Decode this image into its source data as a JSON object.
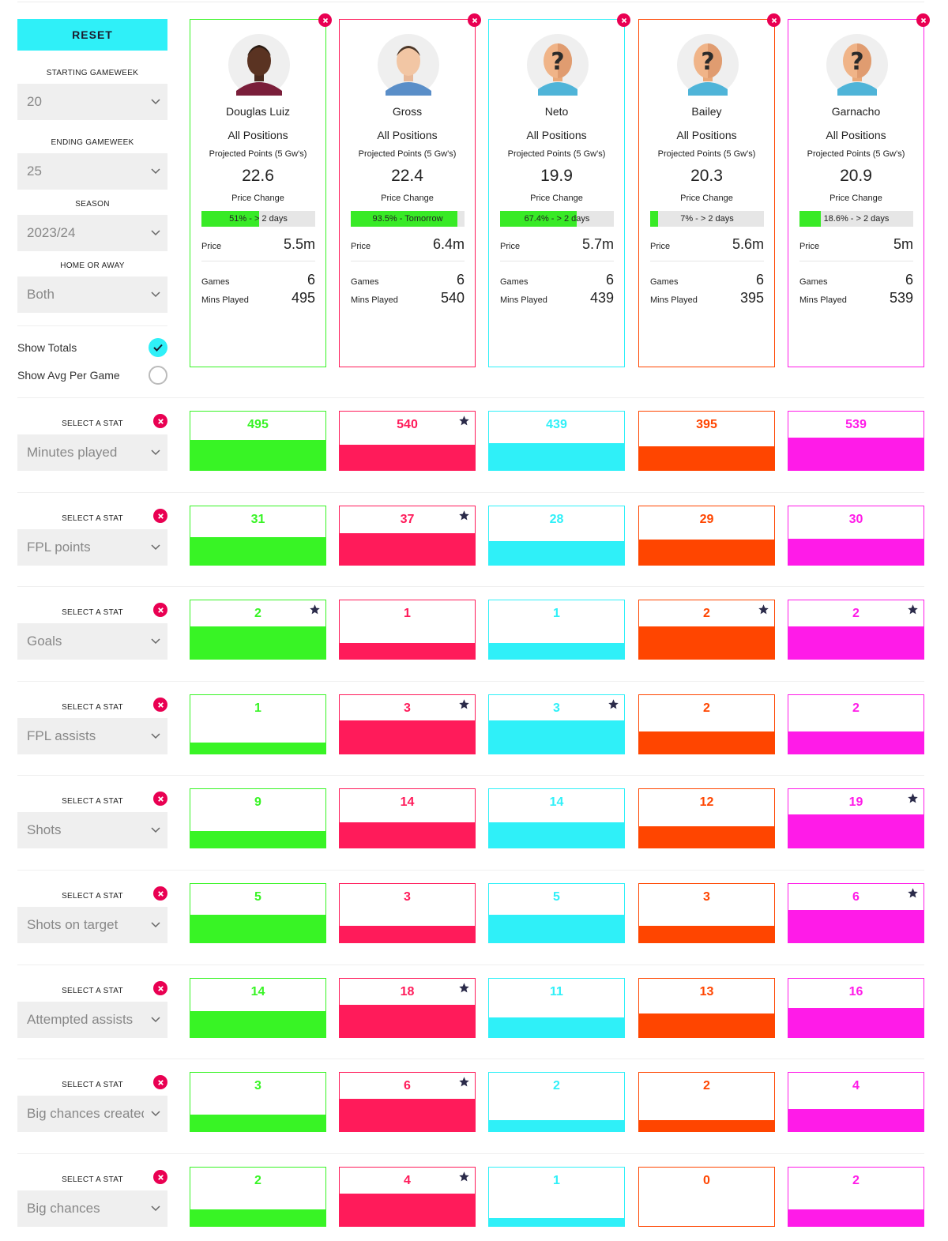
{
  "sidebar": {
    "reset_label": "RESET",
    "starting_gw_label": "STARTING GAMEWEEK",
    "starting_gw": "20",
    "ending_gw_label": "ENDING GAMEWEEK",
    "ending_gw": "25",
    "season_label": "SEASON",
    "season": "2023/24",
    "home_away_label": "HOME OR AWAY",
    "home_away": "Both",
    "show_totals_label": "Show Totals",
    "show_totals": true,
    "show_avg_label": "Show Avg Per Game",
    "show_avg": false
  },
  "labels": {
    "projected": "Projected Points (5 Gw's)",
    "price_change": "Price Change",
    "price": "Price",
    "games": "Games",
    "mins_played": "Mins Played",
    "select_stat": "SELECT A STAT"
  },
  "colors": {
    "player1": "#38f425",
    "player2": "#ff1b5a",
    "player3": "#2ff0f8",
    "player4": "#ff4500",
    "player5": "#ff1be8",
    "price_bar_fill": "#38ea26",
    "remove": "#e90052",
    "star": "#2b2b4a"
  },
  "players": [
    {
      "name": "Douglas Luiz",
      "position": "All Positions",
      "projected": "22.6",
      "price_change_text": "51% - > 2 days",
      "price_change_pct": 51,
      "price": "5.5m",
      "games": "6",
      "mins": "495",
      "avatar": "player-photo-dark"
    },
    {
      "name": "Gross",
      "position": "All Positions",
      "projected": "22.4",
      "price_change_text": "93.5% - Tomorrow",
      "price_change_pct": 93.5,
      "price": "6.4m",
      "games": "6",
      "mins": "540",
      "avatar": "player-photo-light"
    },
    {
      "name": "Neto",
      "position": "All Positions",
      "projected": "19.9",
      "price_change_text": "67.4% - > 2 days",
      "price_change_pct": 67.4,
      "price": "5.7m",
      "games": "6",
      "mins": "439",
      "avatar": "unknown-player"
    },
    {
      "name": "Bailey",
      "position": "All Positions",
      "projected": "20.3",
      "price_change_text": "7% - > 2 days",
      "price_change_pct": 7,
      "price": "5.6m",
      "games": "6",
      "mins": "395",
      "avatar": "unknown-player"
    },
    {
      "name": "Garnacho",
      "position": "All Positions",
      "projected": "20.9",
      "price_change_text": "18.6% - > 2 days",
      "price_change_pct": 18.6,
      "price": "5m",
      "games": "6",
      "mins": "539",
      "avatar": "unknown-player"
    }
  ],
  "stats": [
    {
      "name": "Minutes played",
      "values": [
        "495",
        "540",
        "439",
        "395",
        "539"
      ],
      "fill_pct": [
        52,
        43,
        46,
        40,
        56
      ],
      "best": [
        1
      ]
    },
    {
      "name": "FPL points",
      "values": [
        "31",
        "37",
        "28",
        "29",
        "30"
      ],
      "fill_pct": [
        47,
        54,
        41,
        43,
        45
      ],
      "best": [
        1
      ]
    },
    {
      "name": "Goals",
      "values": [
        "2",
        "1",
        "1",
        "2",
        "2"
      ],
      "fill_pct": [
        56,
        27,
        27,
        56,
        56
      ],
      "best": [
        0,
        3,
        4
      ]
    },
    {
      "name": "FPL assists",
      "values": [
        "1",
        "3",
        "3",
        "2",
        "2"
      ],
      "fill_pct": [
        19,
        57,
        57,
        38,
        38
      ],
      "best": [
        1,
        2
      ]
    },
    {
      "name": "Shots",
      "values": [
        "9",
        "14",
        "14",
        "12",
        "19"
      ],
      "fill_pct": [
        29,
        43,
        43,
        37,
        57
      ],
      "best": [
        4
      ]
    },
    {
      "name": "Shots on target",
      "values": [
        "5",
        "3",
        "5",
        "3",
        "6"
      ],
      "fill_pct": [
        47,
        28,
        47,
        28,
        56
      ],
      "best": [
        4
      ]
    },
    {
      "name": "Attempted assists",
      "values": [
        "14",
        "18",
        "11",
        "13",
        "16"
      ],
      "fill_pct": [
        44,
        56,
        34,
        40,
        50
      ],
      "best": [
        1
      ]
    },
    {
      "name": "Big chances created",
      "values": [
        "3",
        "6",
        "2",
        "2",
        "4"
      ],
      "fill_pct": [
        28,
        56,
        19,
        19,
        38
      ],
      "best": [
        1
      ]
    },
    {
      "name": "Big chances",
      "values": [
        "2",
        "4",
        "1",
        "0",
        "2"
      ],
      "fill_pct": [
        28,
        56,
        14,
        0,
        28
      ],
      "best": [
        1
      ]
    }
  ]
}
